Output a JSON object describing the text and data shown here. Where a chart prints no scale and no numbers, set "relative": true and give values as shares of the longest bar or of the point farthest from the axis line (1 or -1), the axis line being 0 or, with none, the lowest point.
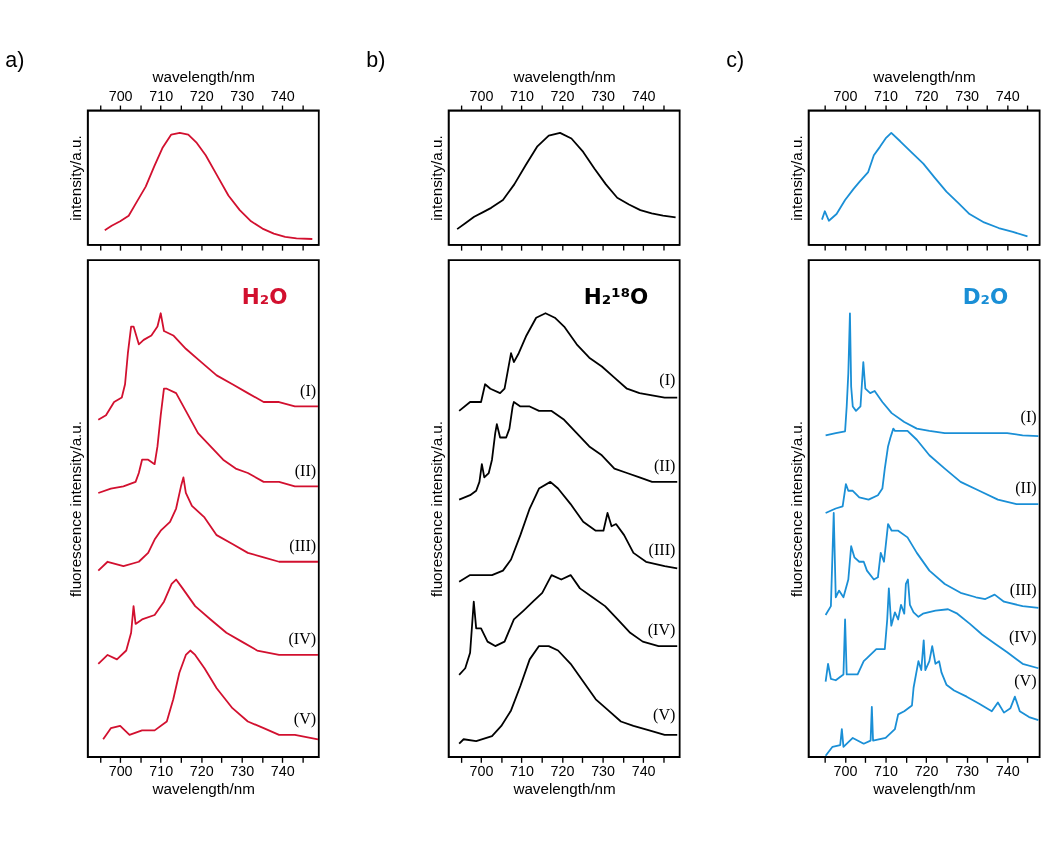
{
  "chart_data": [
    {
      "type": "line",
      "title": "a)",
      "xlabel": "wavelength/nm",
      "ylabel": "intensity/a.u.",
      "xlim": [
        692,
        749
      ],
      "xticks": [
        {
          "value": 695,
          "label": null
        },
        700,
        {
          "value": 705,
          "label": null
        },
        710,
        {
          "value": 715,
          "label": null
        },
        720,
        {
          "value": 725,
          "label": null
        },
        730,
        {
          "value": 735,
          "label": null
        },
        740,
        {
          "value": 745,
          "label": null
        }
      ],
      "relative": true,
      "series": [
        {
          "color": "#d2102f",
          "x": [
            696.2,
            697.9,
            700,
            702.1,
            704.2,
            706.3,
            708.4,
            710.5,
            712.6,
            714.7,
            716.8,
            718.9,
            721.1,
            723.9,
            726.7,
            729.5,
            732.3,
            735.1,
            737.9,
            740.7,
            743.5,
            747.4
          ],
          "values": [
            0.13,
            0.17,
            0.21,
            0.26,
            0.39,
            0.52,
            0.7,
            0.87,
            0.985,
            1,
            0.985,
            0.91,
            0.8,
            0.62,
            0.44,
            0.31,
            0.21,
            0.145,
            0.1,
            0.07,
            0.057,
            0.052
          ]
        }
      ]
    },
    {
      "type": "line",
      "xlabel": "wavelength/nm",
      "ylabel": "fluorescence intensity/a.u.",
      "xlim": [
        692,
        749
      ],
      "xticks": [
        {
          "value": 695,
          "label": null
        },
        700,
        {
          "value": 705,
          "label": null
        },
        710,
        {
          "value": 715,
          "label": null
        },
        720,
        {
          "value": 725,
          "label": null
        },
        730,
        {
          "value": 735,
          "label": null
        },
        740,
        {
          "value": 745,
          "label": null
        }
      ],
      "relative": true,
      "annotations": [
        "H₂O"
      ],
      "series": [
        {
          "name": "(I)",
          "color": "#d2102f",
          "x": [
            694.6,
            696.5,
            698.5,
            700.4,
            701.2,
            701.9,
            702.7,
            703.3,
            704.6,
            705.8,
            707.7,
            709.2,
            710,
            710.8,
            713.1,
            716.2,
            720,
            723.8,
            727.7,
            731.5,
            735.4,
            739.2,
            743.1,
            746.9,
            748.8
          ],
          "values": [
            0.76,
            0.77,
            0.8,
            0.81,
            0.84,
            0.91,
            0.97,
            0.97,
            0.93,
            0.94,
            0.95,
            0.97,
            1,
            0.96,
            0.95,
            0.92,
            0.89,
            0.86,
            0.84,
            0.82,
            0.8,
            0.8,
            0.79,
            0.79,
            0.79
          ]
        },
        {
          "name": "(II)",
          "color": "#d2102f",
          "x": [
            694.6,
            697.7,
            700.8,
            703.8,
            704.6,
            705.4,
            706.9,
            708.5,
            709.2,
            710,
            710.8,
            711.5,
            713.8,
            716.2,
            719.2,
            722.3,
            725.4,
            728.5,
            731.5,
            735.4,
            739.2,
            743.1,
            746.9,
            748.8
          ],
          "values": [
            0.595,
            0.605,
            0.61,
            0.62,
            0.64,
            0.67,
            0.67,
            0.66,
            0.7,
            0.77,
            0.83,
            0.83,
            0.82,
            0.78,
            0.73,
            0.7,
            0.67,
            0.65,
            0.64,
            0.62,
            0.62,
            0.61,
            0.61,
            0.61
          ]
        },
        {
          "name": "(III)",
          "color": "#d2102f",
          "x": [
            694.6,
            696.9,
            700.8,
            704.6,
            706.9,
            708.5,
            710,
            712.3,
            713.8,
            715,
            715.6,
            716.2,
            717.7,
            720.8,
            723.8,
            727.7,
            731.5,
            735.4,
            739.2,
            743.1,
            748.8
          ],
          "values": [
            0.42,
            0.44,
            0.43,
            0.44,
            0.46,
            0.49,
            0.51,
            0.53,
            0.56,
            0.61,
            0.63,
            0.595,
            0.566,
            0.54,
            0.5,
            0.48,
            0.46,
            0.45,
            0.44,
            0.44,
            0.44
          ]
        },
        {
          "name": "(IV)",
          "color": "#d2102f",
          "x": [
            694.6,
            696.9,
            699.2,
            701.5,
            702.7,
            703.3,
            703.8,
            705.4,
            708.5,
            710.8,
            712.7,
            713.8,
            715.4,
            718.5,
            722.3,
            726.2,
            730,
            733.8,
            739.2,
            743.8,
            748.8
          ],
          "values": [
            0.21,
            0.23,
            0.22,
            0.24,
            0.28,
            0.34,
            0.3,
            0.31,
            0.32,
            0.35,
            0.39,
            0.4,
            0.38,
            0.34,
            0.31,
            0.28,
            0.26,
            0.24,
            0.23,
            0.23,
            0.23
          ]
        },
        {
          "name": "(V)",
          "color": "#d2102f",
          "x": [
            695.8,
            697.7,
            700,
            702.3,
            705.4,
            708.5,
            711.5,
            713.1,
            714.6,
            716.2,
            717.3,
            718.5,
            720.8,
            723.8,
            727.7,
            731.5,
            735.4,
            739.2,
            743.1,
            748.8
          ],
          "values": [
            0.04,
            0.065,
            0.07,
            0.05,
            0.06,
            0.06,
            0.08,
            0.13,
            0.19,
            0.23,
            0.24,
            0.23,
            0.2,
            0.155,
            0.11,
            0.08,
            0.065,
            0.05,
            0.05,
            0.04
          ]
        }
      ]
    },
    {
      "type": "line",
      "title": "b)",
      "xlabel": "wavelength/nm",
      "ylabel": "intensity/a.u.",
      "xlim": [
        692,
        749
      ],
      "xticks": [
        {
          "value": 695,
          "label": null
        },
        700,
        {
          "value": 705,
          "label": null
        },
        710,
        {
          "value": 715,
          "label": null
        },
        720,
        {
          "value": 725,
          "label": null
        },
        730,
        {
          "value": 735,
          "label": null
        },
        740,
        {
          "value": 745,
          "label": null
        }
      ],
      "relative": true,
      "series": [
        {
          "color": "#000000",
          "x": [
            694.1,
            696.2,
            698.3,
            700.4,
            702.5,
            705.4,
            708.2,
            711,
            713.9,
            716.7,
            719.5,
            722.3,
            725.2,
            728,
            730.8,
            733.6,
            736.5,
            739.3,
            742.1,
            744.9,
            748
          ],
          "values": [
            0.14,
            0.195,
            0.25,
            0.29,
            0.33,
            0.4,
            0.54,
            0.71,
            0.88,
            0.975,
            1,
            0.95,
            0.83,
            0.68,
            0.54,
            0.42,
            0.36,
            0.31,
            0.28,
            0.26,
            0.245
          ]
        }
      ]
    },
    {
      "type": "line",
      "xlabel": "wavelength/nm",
      "ylabel": "fluorescence intensity/a.u.",
      "xlim": [
        692,
        749
      ],
      "xticks": [
        {
          "value": 695,
          "label": null
        },
        700,
        {
          "value": 705,
          "label": null
        },
        710,
        {
          "value": 715,
          "label": null
        },
        720,
        {
          "value": 725,
          "label": null
        },
        730,
        {
          "value": 735,
          "label": null
        },
        740,
        {
          "value": 745,
          "label": null
        }
      ],
      "relative": true,
      "annotations": [
        "H₂¹⁸O"
      ],
      "series": [
        {
          "name": "(I)",
          "color": "#000000",
          "x": [
            694.6,
            697.3,
            698.8,
            700,
            701,
            702.3,
            704.7,
            705.8,
            706.6,
            707.4,
            708.1,
            709.3,
            711.2,
            713.6,
            715.9,
            718.2,
            720.5,
            723.6,
            726.7,
            729.8,
            732.9,
            736,
            739.1,
            742.2,
            745.3,
            748.4
          ],
          "values": [
            0.78,
            0.8,
            0.8,
            0.8,
            0.84,
            0.83,
            0.82,
            0.83,
            0.87,
            0.91,
            0.89,
            0.91,
            0.95,
            0.99,
            1,
            0.99,
            0.97,
            0.93,
            0.9,
            0.88,
            0.855,
            0.83,
            0.82,
            0.815,
            0.81,
            0.81
          ]
        },
        {
          "name": "(II)",
          "color": "#000000",
          "x": [
            694.6,
            697.3,
            698.8,
            699.6,
            700.2,
            700.8,
            701.9,
            702.7,
            703.5,
            703.9,
            704.7,
            706.2,
            707,
            707.8,
            708.1,
            709.7,
            712,
            714.3,
            717.4,
            720.5,
            723.6,
            726.7,
            729.8,
            732.9,
            736,
            739.1,
            742.2,
            745.3,
            748.4
          ],
          "values": [
            0.58,
            0.59,
            0.6,
            0.62,
            0.66,
            0.63,
            0.64,
            0.67,
            0.73,
            0.75,
            0.72,
            0.72,
            0.74,
            0.79,
            0.8,
            0.79,
            0.79,
            0.78,
            0.78,
            0.76,
            0.73,
            0.7,
            0.68,
            0.65,
            0.64,
            0.63,
            0.62,
            0.62,
            0.62
          ]
        },
        {
          "name": "(III)",
          "color": "#000000",
          "x": [
            694.6,
            697.3,
            699.6,
            702.7,
            705.4,
            707.4,
            709.7,
            712,
            714.3,
            717.1,
            719,
            722.1,
            725.2,
            728.3,
            730.2,
            731.2,
            732.2,
            733.3,
            735.3,
            737.6,
            740.7,
            745.3,
            748.4
          ],
          "values": [
            0.395,
            0.41,
            0.41,
            0.41,
            0.42,
            0.445,
            0.5,
            0.56,
            0.605,
            0.62,
            0.605,
            0.57,
            0.53,
            0.51,
            0.51,
            0.55,
            0.52,
            0.525,
            0.5,
            0.46,
            0.44,
            0.43,
            0.425
          ]
        },
        {
          "name": "(IV)",
          "color": "#000000",
          "x": [
            694.6,
            696.1,
            697.3,
            698.2,
            698.8,
            700,
            701.6,
            703.5,
            705.8,
            708.1,
            710.5,
            712.8,
            715.1,
            717.4,
            719.8,
            722.1,
            724.4,
            727.5,
            730.6,
            733.7,
            736.8,
            739.9,
            743.8,
            748.4
          ],
          "values": [
            0.185,
            0.2,
            0.235,
            0.35,
            0.29,
            0.29,
            0.26,
            0.25,
            0.26,
            0.31,
            0.33,
            0.35,
            0.37,
            0.41,
            0.4,
            0.41,
            0.38,
            0.36,
            0.34,
            0.31,
            0.28,
            0.26,
            0.25,
            0.25
          ]
        },
        {
          "name": "(V)",
          "color": "#000000",
          "x": [
            694.6,
            695.7,
            698.8,
            702.7,
            705,
            707.4,
            709.7,
            712,
            714.3,
            716.7,
            719,
            722.1,
            725.2,
            728.3,
            731.4,
            734.5,
            737.6,
            741.5,
            745.3,
            748.4
          ],
          "values": [
            0.03,
            0.04,
            0.036,
            0.047,
            0.07,
            0.105,
            0.16,
            0.22,
            0.25,
            0.25,
            0.24,
            0.21,
            0.17,
            0.13,
            0.105,
            0.08,
            0.07,
            0.06,
            0.05,
            0.05
          ]
        }
      ]
    },
    {
      "type": "line",
      "title": "c)",
      "xlabel": "wavelength/nm",
      "ylabel": "intensity/a.u.",
      "xlim": [
        691,
        748
      ],
      "xticks": [
        {
          "value": 695,
          "label": null
        },
        700,
        {
          "value": 705,
          "label": null
        },
        710,
        {
          "value": 715,
          "label": null
        },
        720,
        {
          "value": 725,
          "label": null
        },
        730,
        {
          "value": 735,
          "label": null
        },
        740,
        {
          "value": 745,
          "label": null
        }
      ],
      "relative": true,
      "series": [
        {
          "color": "#1a8fd6",
          "x": [
            694.3,
            695,
            696,
            697.9,
            700,
            702.1,
            703.6,
            705.7,
            707.1,
            708.6,
            710,
            711.4,
            713.6,
            716.4,
            719.3,
            722.1,
            725,
            727.9,
            730.7,
            734.3,
            737.9,
            741.4,
            745
          ],
          "values": [
            0.225,
            0.3,
            0.215,
            0.275,
            0.4,
            0.5,
            0.565,
            0.65,
            0.8,
            0.875,
            0.95,
            1,
            0.925,
            0.825,
            0.725,
            0.6,
            0.475,
            0.375,
            0.275,
            0.2,
            0.15,
            0.115,
            0.075
          ]
        }
      ]
    },
    {
      "type": "line",
      "xlabel": "wavelength/nm",
      "ylabel": "fluorescence intensity/a.u.",
      "xlim": [
        691,
        748
      ],
      "xticks": [
        {
          "value": 695,
          "label": null
        },
        700,
        {
          "value": 705,
          "label": null
        },
        710,
        {
          "value": 715,
          "label": null
        },
        720,
        {
          "value": 725,
          "label": null
        },
        730,
        {
          "value": 735,
          "label": null
        },
        740,
        {
          "value": 745,
          "label": null
        }
      ],
      "relative": true,
      "annotations": [
        "D₂O"
      ],
      "series": [
        {
          "name": "(I)",
          "color": "#1a8fd6",
          "x": [
            695.2,
            697.7,
            700,
            700.4,
            700.8,
            701.2,
            701.5,
            701.9,
            702.7,
            703.8,
            704.5,
            705,
            706.2,
            707.3,
            709.2,
            711.5,
            714.6,
            717.7,
            720.8,
            724.6,
            728.5,
            732.3,
            736.2,
            740,
            743.8,
            747.7
          ],
          "values": [
            0.725,
            0.73,
            0.734,
            0.79,
            0.865,
            1,
            0.835,
            0.79,
            0.78,
            0.79,
            0.89,
            0.83,
            0.82,
            0.825,
            0.8,
            0.775,
            0.755,
            0.74,
            0.735,
            0.73,
            0.73,
            0.73,
            0.73,
            0.73,
            0.725,
            0.723
          ]
        },
        {
          "name": "(II)",
          "color": "#1a8fd6",
          "x": [
            695.2,
            697.7,
            699.4,
            700.2,
            700.8,
            701.9,
            703.5,
            705.8,
            708.1,
            709.2,
            709.8,
            710.6,
            711.2,
            711.9,
            712.3,
            713.8,
            715.4,
            717.7,
            720.8,
            724.6,
            728.5,
            733.1,
            737.7,
            742.3,
            747.7
          ],
          "values": [
            0.55,
            0.56,
            0.565,
            0.615,
            0.6,
            0.6,
            0.585,
            0.58,
            0.59,
            0.605,
            0.65,
            0.7,
            0.72,
            0.74,
            0.735,
            0.735,
            0.735,
            0.715,
            0.68,
            0.65,
            0.62,
            0.6,
            0.58,
            0.57,
            0.57
          ]
        },
        {
          "name": "(III)",
          "color": "#1a8fd6",
          "x": [
            695.2,
            696.5,
            697.2,
            697.7,
            698.5,
            699.6,
            700.8,
            701.5,
            702.3,
            703.5,
            704.6,
            705.4,
            707.1,
            708.1,
            708.8,
            709.6,
            710.6,
            711.5,
            713.1,
            715.4,
            717.7,
            720.8,
            724.6,
            728.5,
            732.3,
            734.6,
            736.9,
            739.2,
            743.8,
            747.7
          ],
          "values": [
            0.32,
            0.34,
            0.55,
            0.36,
            0.375,
            0.36,
            0.4,
            0.475,
            0.45,
            0.44,
            0.44,
            0.42,
            0.4,
            0.405,
            0.46,
            0.44,
            0.525,
            0.51,
            0.51,
            0.495,
            0.46,
            0.42,
            0.39,
            0.37,
            0.36,
            0.356,
            0.366,
            0.35,
            0.34,
            0.336
          ]
        },
        {
          "name": "(IV)",
          "color": "#1a8fd6",
          "x": [
            695.2,
            695.8,
            696.5,
            697.7,
            699.6,
            700,
            700.4,
            703.1,
            704.6,
            705.4,
            707.7,
            709.8,
            710.4,
            710.8,
            711.4,
            712.3,
            713.1,
            713.8,
            714.6,
            715,
            715.5,
            716,
            716.9,
            718.1,
            719.2,
            722.3,
            725.4,
            727.7,
            730.8,
            733.8,
            736.9,
            740,
            743.8,
            747.7
          ],
          "values": [
            0.17,
            0.21,
            0.176,
            0.173,
            0.186,
            0.31,
            0.186,
            0.186,
            0.216,
            0.223,
            0.243,
            0.243,
            0.31,
            0.38,
            0.296,
            0.326,
            0.31,
            0.343,
            0.323,
            0.39,
            0.4,
            0.343,
            0.326,
            0.316,
            0.323,
            0.33,
            0.333,
            0.323,
            0.3,
            0.276,
            0.256,
            0.236,
            0.21,
            0.2
          ]
        },
        {
          "name": "(V)",
          "color": "#1a8fd6",
          "x": [
            695.2,
            696.9,
            698.8,
            699.2,
            699.6,
            701.9,
            704.6,
            706.3,
            706.6,
            706.9,
            710,
            712.3,
            713.1,
            714.6,
            716.5,
            716.9,
            718.1,
            718.8,
            719.4,
            719.8,
            720.8,
            721.5,
            722.3,
            723.2,
            723.8,
            725,
            726.9,
            730,
            733.1,
            736.2,
            737.7,
            739.2,
            740.8,
            741.9,
            743.1,
            745.4,
            747.7
          ],
          "values": [
            0.003,
            0.023,
            0.027,
            0.063,
            0.023,
            0.043,
            0.03,
            0.037,
            0.113,
            0.037,
            0.043,
            0.063,
            0.096,
            0.103,
            0.116,
            0.156,
            0.216,
            0.196,
            0.263,
            0.196,
            0.216,
            0.25,
            0.21,
            0.216,
            0.19,
            0.163,
            0.15,
            0.136,
            0.12,
            0.103,
            0.123,
            0.1,
            0.11,
            0.136,
            0.103,
            0.09,
            0.083
          ]
        }
      ]
    }
  ]
}
